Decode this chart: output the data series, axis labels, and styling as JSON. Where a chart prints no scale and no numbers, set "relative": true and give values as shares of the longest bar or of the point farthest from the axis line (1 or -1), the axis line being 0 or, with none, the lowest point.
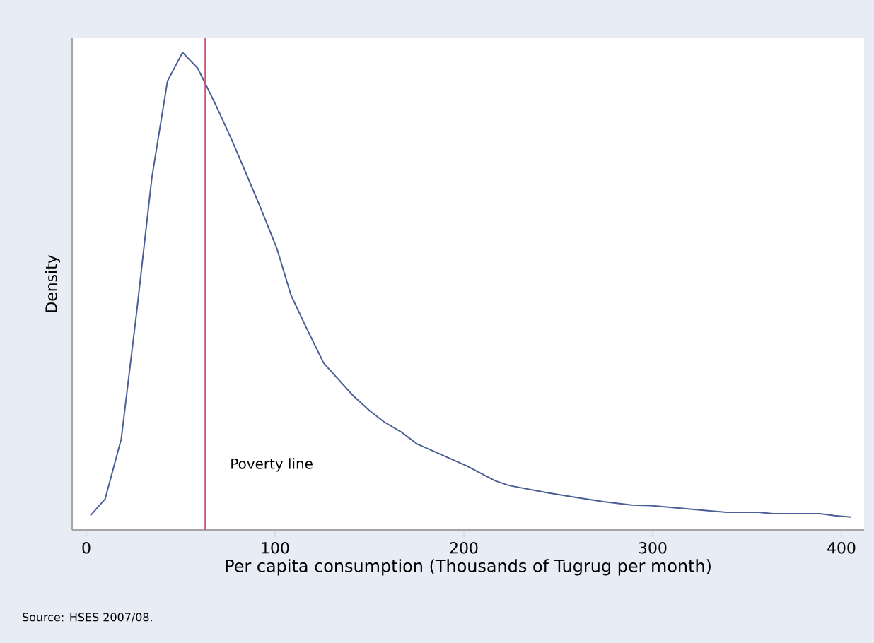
{
  "chart_data": {
    "type": "line",
    "relative": true,
    "xlabel": "Per capita consumption (Thousands of Tugrug per month)",
    "ylabel": "Density",
    "x": [
      2.2,
      10,
      18.5,
      26.7,
      34.7,
      43,
      51,
      59,
      68,
      76.7,
      84.6,
      92.9,
      100.9,
      108.4,
      116.6,
      125.8,
      141.6,
      150.3,
      157.8,
      166.5,
      175.3,
      201.5,
      216.5,
      224,
      244,
      257.7,
      273.9,
      288.9,
      298.9,
      338.9,
      356.3,
      363.8,
      388.8,
      396.3,
      405
    ],
    "series": [
      {
        "color": "#4a5f95",
        "values": [
          0.03,
          0.065,
          0.19,
          0.457,
          0.737,
          0.94,
          1,
          0.967,
          0.895,
          0.82,
          0.747,
          0.669,
          0.59,
          0.492,
          0.423,
          0.349,
          0.28,
          0.249,
          0.226,
          0.206,
          0.18,
          0.134,
          0.103,
          0.093,
          0.078,
          0.069,
          0.059,
          0.052,
          0.051,
          0.037,
          0.037,
          0.034,
          0.034,
          0.03,
          0.027
        ]
      }
    ],
    "xlim": [
      -7.5,
      412
    ],
    "xticks": [
      0,
      100,
      200,
      300,
      400
    ],
    "ref_lines": [
      {
        "axis": "x",
        "value": 63,
        "label": "Poverty line",
        "color": "#d0506e"
      }
    ],
    "annotations": [
      "Source: HSES 2007/08."
    ]
  }
}
